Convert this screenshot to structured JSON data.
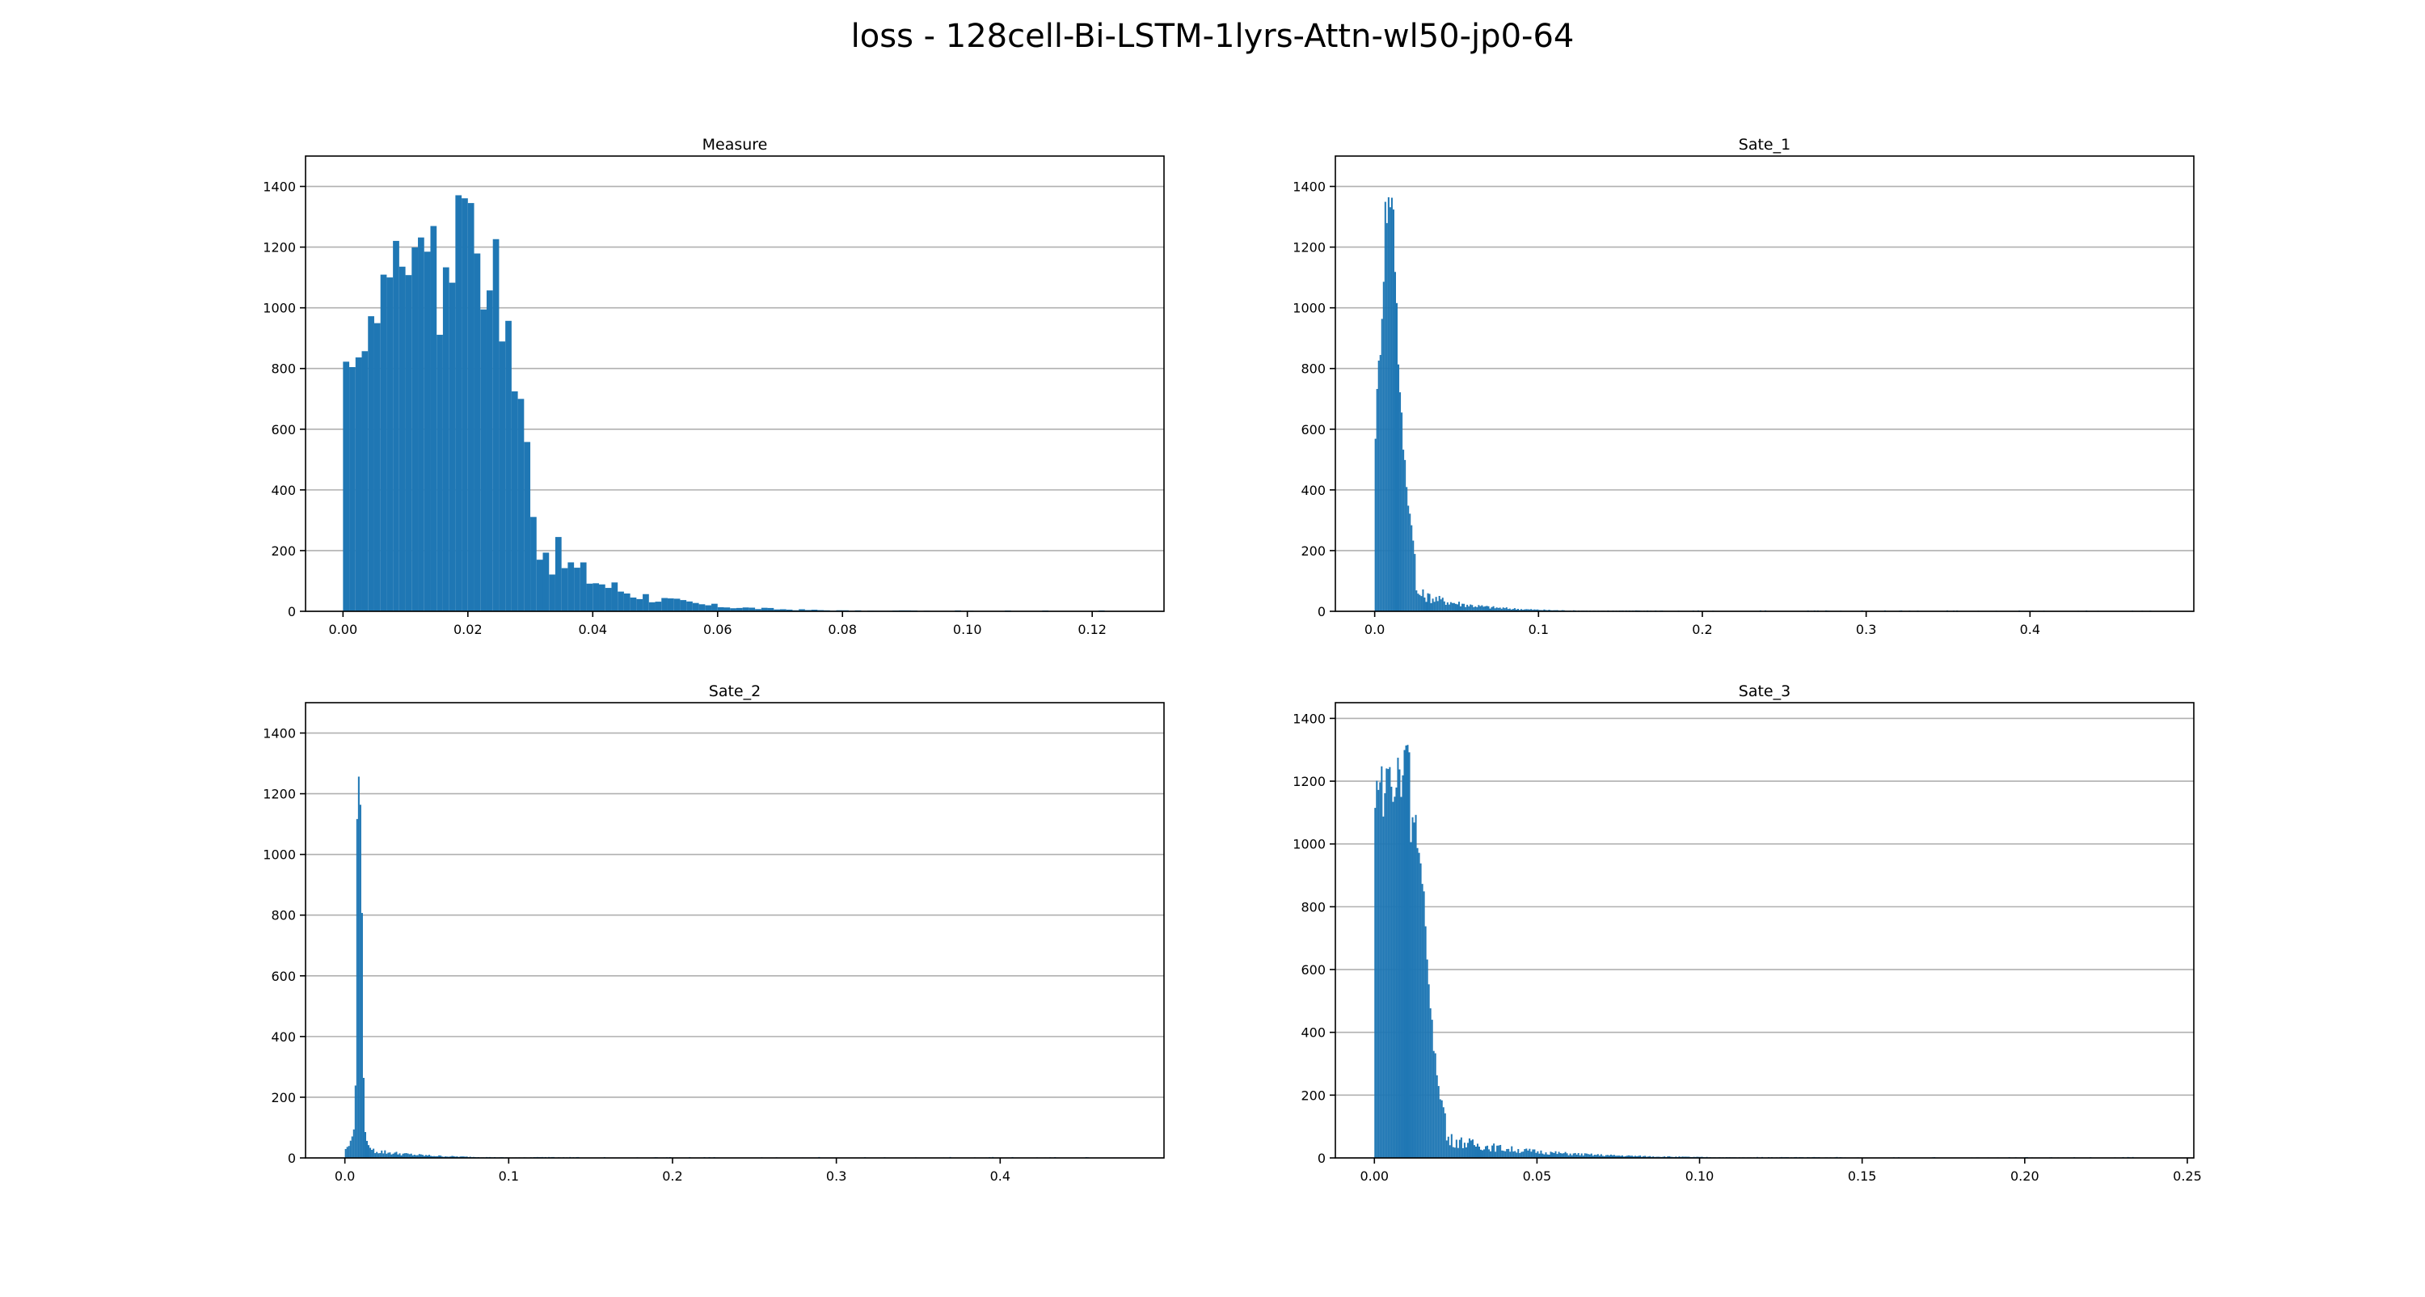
{
  "figure": {
    "title": "loss - 128cell-Bi-LSTM-1lyrs-Attn-wl50-jp0-64"
  },
  "colors": {
    "bar": "#1f77b4",
    "grid": "#b0b0b0",
    "axes": "#000000"
  },
  "chart_data": [
    {
      "type": "bar",
      "title": "Measure",
      "xlim": [
        -0.006,
        0.1315
      ],
      "ylim": [
        0,
        1500
      ],
      "xticks": [
        0.0,
        0.02,
        0.04,
        0.06,
        0.08,
        0.1,
        0.12
      ],
      "xtick_labels": [
        "0.00",
        "0.02",
        "0.04",
        "0.06",
        "0.08",
        "0.10",
        "0.12"
      ],
      "yticks": [
        0,
        200,
        400,
        600,
        800,
        1000,
        1200,
        1400
      ],
      "ytick_labels": [
        "0",
        "200",
        "400",
        "600",
        "800",
        "1000",
        "1200",
        "1400"
      ],
      "grid": "y",
      "xlabel": "",
      "ylabel": "",
      "peaks": [
        [
          0.0,
          780
        ],
        [
          0.001,
          760
        ],
        [
          0.002,
          890
        ],
        [
          0.003,
          870
        ],
        [
          0.004,
          920
        ],
        [
          0.005,
          1000
        ],
        [
          0.006,
          1130
        ],
        [
          0.007,
          1100
        ],
        [
          0.008,
          1200
        ],
        [
          0.009,
          1180
        ],
        [
          0.01,
          1170
        ],
        [
          0.011,
          1130
        ],
        [
          0.012,
          1250
        ],
        [
          0.013,
          1240
        ],
        [
          0.0135,
          870
        ],
        [
          0.014,
          1270
        ],
        [
          0.015,
          940
        ],
        [
          0.016,
          1200
        ],
        [
          0.017,
          1050
        ],
        [
          0.018,
          1410
        ],
        [
          0.019,
          1400
        ],
        [
          0.0195,
          1050
        ],
        [
          0.02,
          1440
        ],
        [
          0.021,
          1120
        ],
        [
          0.022,
          1040
        ],
        [
          0.023,
          1010
        ],
        [
          0.024,
          1240
        ],
        [
          0.025,
          930
        ],
        [
          0.026,
          950
        ],
        [
          0.027,
          740
        ],
        [
          0.028,
          680
        ],
        [
          0.029,
          550
        ],
        [
          0.03,
          330
        ],
        [
          0.031,
          240
        ]
      ],
      "tail_start": 0.031,
      "tail_start_value": 230,
      "tail_decay": 0.011,
      "x_max": 0.125,
      "bin_width": 0.001
    },
    {
      "type": "bar",
      "title": "Sate_1",
      "xlim": [
        -0.024,
        0.5
      ],
      "ylim": [
        0,
        1500
      ],
      "xticks": [
        0.0,
        0.1,
        0.2,
        0.3,
        0.4
      ],
      "xtick_labels": [
        "0.0",
        "0.1",
        "0.2",
        "0.3",
        "0.4"
      ],
      "yticks": [
        0,
        200,
        400,
        600,
        800,
        1000,
        1200,
        1400
      ],
      "ytick_labels": [
        "0",
        "200",
        "400",
        "600",
        "800",
        "1000",
        "1200",
        "1400"
      ],
      "grid": "y",
      "xlabel": "",
      "ylabel": "",
      "peaks": [
        [
          0.0,
          600
        ],
        [
          0.002,
          800
        ],
        [
          0.004,
          1000
        ],
        [
          0.005,
          1150
        ],
        [
          0.006,
          1300
        ],
        [
          0.007,
          1330
        ],
        [
          0.008,
          1360
        ],
        [
          0.009,
          1300
        ],
        [
          0.01,
          1420
        ],
        [
          0.011,
          1340
        ],
        [
          0.012,
          1170
        ],
        [
          0.013,
          1000
        ],
        [
          0.014,
          850
        ],
        [
          0.015,
          700
        ],
        [
          0.017,
          550
        ],
        [
          0.019,
          420
        ],
        [
          0.021,
          320
        ],
        [
          0.023,
          250
        ],
        [
          0.025,
          120
        ]
      ],
      "tail_start": 0.025,
      "tail_start_value": 60,
      "tail_decay": 0.03,
      "x_max": 0.48,
      "bin_width": 0.001
    },
    {
      "type": "bar",
      "title": "Sate_2",
      "xlim": [
        -0.024,
        0.5
      ],
      "ylim": [
        0,
        1500
      ],
      "xticks": [
        0.0,
        0.1,
        0.2,
        0.3,
        0.4
      ],
      "xtick_labels": [
        "0.0",
        "0.1",
        "0.2",
        "0.3",
        "0.4"
      ],
      "yticks": [
        0,
        200,
        400,
        600,
        800,
        1000,
        1200,
        1400
      ],
      "ytick_labels": [
        "0",
        "200",
        "400",
        "600",
        "800",
        "1000",
        "1200",
        "1400"
      ],
      "grid": "y",
      "xlabel": "",
      "ylabel": "",
      "peaks": [
        [
          0.0,
          30
        ],
        [
          0.002,
          40
        ],
        [
          0.004,
          70
        ],
        [
          0.005,
          100
        ],
        [
          0.006,
          250
        ],
        [
          0.007,
          1050
        ],
        [
          0.008,
          1270
        ],
        [
          0.009,
          1230
        ],
        [
          0.01,
          830
        ],
        [
          0.011,
          250
        ],
        [
          0.012,
          80
        ],
        [
          0.014,
          40
        ],
        [
          0.016,
          30
        ]
      ],
      "tail_start": 0.016,
      "tail_start_value": 25,
      "tail_decay": 0.03,
      "x_max": 0.47,
      "bin_width": 0.001
    },
    {
      "type": "bar",
      "title": "Sate_3",
      "xlim": [
        -0.012,
        0.252
      ],
      "ylim": [
        0,
        1450
      ],
      "xticks": [
        0.0,
        0.05,
        0.1,
        0.15,
        0.2,
        0.25
      ],
      "xtick_labels": [
        "0.00",
        "0.05",
        "0.10",
        "0.15",
        "0.20",
        "0.25"
      ],
      "yticks": [
        0,
        200,
        400,
        600,
        800,
        1000,
        1200,
        1400
      ],
      "ytick_labels": [
        "0",
        "200",
        "400",
        "600",
        "800",
        "1000",
        "1200",
        "1400"
      ],
      "grid": "y",
      "xlabel": "",
      "ylabel": "",
      "peaks": [
        [
          0.0,
          1100
        ],
        [
          0.001,
          1250
        ],
        [
          0.002,
          1180
        ],
        [
          0.003,
          1150
        ],
        [
          0.004,
          1270
        ],
        [
          0.005,
          1200
        ],
        [
          0.006,
          1110
        ],
        [
          0.007,
          1260
        ],
        [
          0.008,
          1180
        ],
        [
          0.009,
          1300
        ],
        [
          0.01,
          1380
        ],
        [
          0.011,
          1080
        ],
        [
          0.012,
          1130
        ],
        [
          0.013,
          1000
        ],
        [
          0.014,
          900
        ],
        [
          0.015,
          800
        ],
        [
          0.016,
          620
        ],
        [
          0.017,
          510
        ],
        [
          0.018,
          350
        ],
        [
          0.02,
          200
        ],
        [
          0.022,
          120
        ]
      ],
      "tail_start": 0.022,
      "tail_start_value": 60,
      "tail_decay": 0.025,
      "x_max": 0.24,
      "bin_width": 0.0005
    }
  ]
}
